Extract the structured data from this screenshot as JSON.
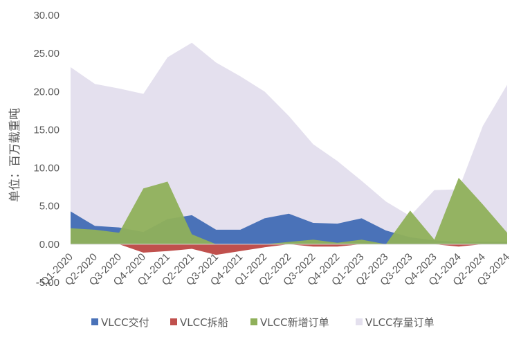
{
  "chart_data": {
    "type": "area",
    "ylabel": "单位：百万载重吨",
    "xlabel": "",
    "ylim": [
      -5,
      30
    ],
    "y_ticks": [
      "30.00",
      "25.00",
      "20.00",
      "15.00",
      "10.00",
      "5.00",
      "0.00",
      "-5.00"
    ],
    "categories": [
      "Q1-2020",
      "Q2-2020",
      "Q3-2020",
      "Q4-2020",
      "Q1-2021",
      "Q2-2021",
      "Q3-2021",
      "Q4-2021",
      "Q1-2022",
      "Q2-2022",
      "Q3-2022",
      "Q4-2022",
      "Q1-2023",
      "Q2-2023",
      "Q3-2023",
      "Q4-2023",
      "Q1-2024",
      "Q2-2024",
      "Q3-2024"
    ],
    "series": [
      {
        "name": "VLCC存量订单",
        "color": "#e4e0ee",
        "values": [
          23.2,
          21.0,
          20.4,
          19.7,
          24.5,
          26.4,
          23.8,
          22.0,
          20.0,
          16.8,
          13.1,
          10.9,
          8.3,
          5.6,
          3.7,
          7.1,
          7.2,
          15.5,
          20.9
        ]
      },
      {
        "name": "VLCC交付",
        "color": "#4a72b8",
        "values": [
          4.3,
          2.4,
          2.2,
          1.6,
          3.3,
          3.8,
          1.9,
          1.9,
          3.4,
          4.0,
          2.8,
          2.7,
          3.4,
          1.8,
          0.9,
          0.5,
          0.3,
          0.3,
          0.3
        ]
      },
      {
        "name": "VLCC拆船",
        "color": "#c0504d",
        "values": [
          0.0,
          0.0,
          0.0,
          -1.1,
          -0.9,
          -0.6,
          -1.4,
          -0.9,
          -0.4,
          0.0,
          -0.3,
          -0.3,
          0.0,
          0.0,
          0.0,
          0.0,
          -0.3,
          0.0,
          0.0
        ]
      },
      {
        "name": "VLCC新增订单",
        "color": "#8fb05a",
        "values": [
          2.1,
          1.9,
          1.5,
          7.3,
          8.2,
          1.3,
          0.0,
          0.0,
          0.0,
          0.3,
          0.6,
          0.2,
          0.6,
          0.0,
          4.4,
          0.6,
          8.7,
          5.2,
          1.5
        ]
      }
    ],
    "legend_order": [
      "VLCC交付",
      "VLCC拆船",
      "VLCC新增订单",
      "VLCC存量订单"
    ],
    "legend_position": "bottom",
    "grid": false
  }
}
